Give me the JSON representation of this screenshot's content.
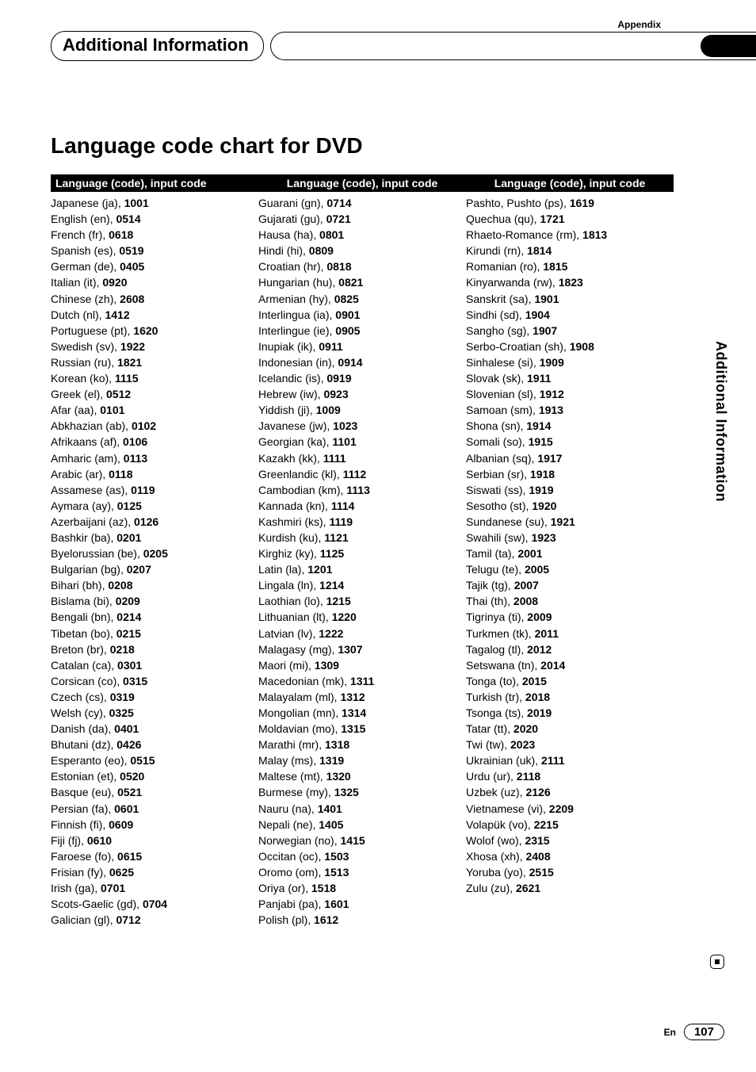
{
  "header": {
    "appendix": "Appendix",
    "section_title": "Additional Information"
  },
  "title": "Language code chart for DVD",
  "column_header": "Language (code), input code",
  "side_tab": "Additional Information",
  "footer": {
    "lang": "En",
    "page": "107"
  },
  "colors": {
    "text": "#000000",
    "bg": "#ffffff",
    "header_bg": "#000000",
    "header_fg": "#ffffff"
  },
  "columns": [
    [
      {
        "n": "Japanese (ja)",
        "c": "1001"
      },
      {
        "n": "English (en)",
        "c": "0514"
      },
      {
        "n": "French (fr)",
        "c": "0618"
      },
      {
        "n": "Spanish (es)",
        "c": "0519"
      },
      {
        "n": "German (de)",
        "c": "0405"
      },
      {
        "n": "Italian (it)",
        "c": "0920"
      },
      {
        "n": "Chinese (zh)",
        "c": "2608"
      },
      {
        "n": "Dutch (nl)",
        "c": "1412"
      },
      {
        "n": "Portuguese (pt)",
        "c": "1620"
      },
      {
        "n": "Swedish (sv)",
        "c": "1922"
      },
      {
        "n": "Russian (ru)",
        "c": "1821"
      },
      {
        "n": "Korean (ko)",
        "c": "1115"
      },
      {
        "n": "Greek (el)",
        "c": "0512"
      },
      {
        "n": "Afar (aa)",
        "c": "0101"
      },
      {
        "n": "Abkhazian (ab)",
        "c": "0102"
      },
      {
        "n": "Afrikaans (af)",
        "c": "0106"
      },
      {
        "n": "Amharic (am)",
        "c": "0113"
      },
      {
        "n": "Arabic (ar)",
        "c": "0118"
      },
      {
        "n": "Assamese (as)",
        "c": "0119"
      },
      {
        "n": "Aymara (ay)",
        "c": "0125"
      },
      {
        "n": "Azerbaijani (az)",
        "c": "0126"
      },
      {
        "n": "Bashkir (ba)",
        "c": "0201"
      },
      {
        "n": "Byelorussian (be)",
        "c": "0205"
      },
      {
        "n": "Bulgarian (bg)",
        "c": "0207"
      },
      {
        "n": "Bihari (bh)",
        "c": "0208"
      },
      {
        "n": "Bislama (bi)",
        "c": "0209"
      },
      {
        "n": "Bengali (bn)",
        "c": "0214"
      },
      {
        "n": "Tibetan (bo)",
        "c": "0215"
      },
      {
        "n": "Breton (br)",
        "c": "0218"
      },
      {
        "n": "Catalan (ca)",
        "c": "0301"
      },
      {
        "n": "Corsican (co)",
        "c": "0315"
      },
      {
        "n": "Czech (cs)",
        "c": "0319"
      },
      {
        "n": "Welsh (cy)",
        "c": "0325"
      },
      {
        "n": "Danish (da)",
        "c": "0401"
      },
      {
        "n": "Bhutani (dz)",
        "c": "0426"
      },
      {
        "n": "Esperanto (eo)",
        "c": "0515"
      },
      {
        "n": "Estonian (et)",
        "c": "0520"
      },
      {
        "n": "Basque (eu)",
        "c": "0521"
      },
      {
        "n": "Persian (fa)",
        "c": "0601"
      },
      {
        "n": "Finnish (fi)",
        "c": "0609"
      },
      {
        "n": "Fiji (fj)",
        "c": "0610"
      },
      {
        "n": "Faroese (fo)",
        "c": "0615"
      },
      {
        "n": "Frisian (fy)",
        "c": "0625"
      },
      {
        "n": "Irish (ga)",
        "c": "0701"
      },
      {
        "n": "Scots-Gaelic (gd)",
        "c": "0704"
      },
      {
        "n": "Galician (gl)",
        "c": "0712"
      }
    ],
    [
      {
        "n": "Guarani (gn)",
        "c": "0714"
      },
      {
        "n": "Gujarati (gu)",
        "c": "0721"
      },
      {
        "n": "Hausa (ha)",
        "c": "0801"
      },
      {
        "n": "Hindi (hi)",
        "c": "0809"
      },
      {
        "n": "Croatian (hr)",
        "c": "0818"
      },
      {
        "n": "Hungarian (hu)",
        "c": "0821"
      },
      {
        "n": "Armenian (hy)",
        "c": "0825"
      },
      {
        "n": "Interlingua (ia)",
        "c": "0901"
      },
      {
        "n": "Interlingue (ie)",
        "c": "0905"
      },
      {
        "n": "Inupiak (ik)",
        "c": "0911"
      },
      {
        "n": "Indonesian (in)",
        "c": "0914"
      },
      {
        "n": "Icelandic (is)",
        "c": "0919"
      },
      {
        "n": "Hebrew (iw)",
        "c": "0923"
      },
      {
        "n": "Yiddish (ji)",
        "c": "1009"
      },
      {
        "n": "Javanese (jw)",
        "c": "1023"
      },
      {
        "n": "Georgian (ka)",
        "c": "1101"
      },
      {
        "n": "Kazakh (kk)",
        "c": "1111"
      },
      {
        "n": "Greenlandic (kl)",
        "c": "1112"
      },
      {
        "n": "Cambodian (km)",
        "c": "1113"
      },
      {
        "n": "Kannada (kn)",
        "c": "1114"
      },
      {
        "n": "Kashmiri (ks)",
        "c": "1119"
      },
      {
        "n": "Kurdish (ku)",
        "c": "1121"
      },
      {
        "n": "Kirghiz (ky)",
        "c": "1125"
      },
      {
        "n": "Latin (la)",
        "c": "1201"
      },
      {
        "n": "Lingala (ln)",
        "c": "1214"
      },
      {
        "n": "Laothian (lo)",
        "c": "1215"
      },
      {
        "n": "Lithuanian (lt)",
        "c": "1220"
      },
      {
        "n": "Latvian (lv)",
        "c": "1222"
      },
      {
        "n": "Malagasy (mg)",
        "c": "1307"
      },
      {
        "n": "Maori (mi)",
        "c": "1309"
      },
      {
        "n": "Macedonian (mk)",
        "c": "1311"
      },
      {
        "n": "Malayalam (ml)",
        "c": "1312"
      },
      {
        "n": "Mongolian (mn)",
        "c": "1314"
      },
      {
        "n": "Moldavian (mo)",
        "c": "1315"
      },
      {
        "n": "Marathi (mr)",
        "c": "1318"
      },
      {
        "n": "Malay (ms)",
        "c": "1319"
      },
      {
        "n": "Maltese (mt)",
        "c": "1320"
      },
      {
        "n": "Burmese (my)",
        "c": "1325"
      },
      {
        "n": "Nauru (na)",
        "c": "1401"
      },
      {
        "n": "Nepali (ne)",
        "c": "1405"
      },
      {
        "n": "Norwegian (no)",
        "c": "1415"
      },
      {
        "n": "Occitan (oc)",
        "c": "1503"
      },
      {
        "n": "Oromo (om)",
        "c": "1513"
      },
      {
        "n": "Oriya (or)",
        "c": "1518"
      },
      {
        "n": "Panjabi (pa)",
        "c": "1601"
      },
      {
        "n": "Polish (pl)",
        "c": "1612"
      }
    ],
    [
      {
        "n": "Pashto, Pushto (ps)",
        "c": "1619"
      },
      {
        "n": "Quechua (qu)",
        "c": "1721"
      },
      {
        "n": "Rhaeto-Romance (rm)",
        "c": "1813"
      },
      {
        "n": "Kirundi (rn)",
        "c": "1814"
      },
      {
        "n": "Romanian (ro)",
        "c": "1815"
      },
      {
        "n": "Kinyarwanda (rw)",
        "c": "1823"
      },
      {
        "n": "Sanskrit (sa)",
        "c": "1901"
      },
      {
        "n": "Sindhi (sd)",
        "c": "1904"
      },
      {
        "n": "Sangho (sg)",
        "c": "1907"
      },
      {
        "n": "Serbo-Croatian (sh)",
        "c": "1908"
      },
      {
        "n": "Sinhalese (si)",
        "c": "1909"
      },
      {
        "n": "Slovak (sk)",
        "c": "1911"
      },
      {
        "n": "Slovenian (sl)",
        "c": "1912"
      },
      {
        "n": "Samoan (sm)",
        "c": "1913"
      },
      {
        "n": "Shona (sn)",
        "c": "1914"
      },
      {
        "n": "Somali (so)",
        "c": "1915"
      },
      {
        "n": "Albanian (sq)",
        "c": "1917"
      },
      {
        "n": "Serbian (sr)",
        "c": "1918"
      },
      {
        "n": "Siswati (ss)",
        "c": "1919"
      },
      {
        "n": "Sesotho (st)",
        "c": "1920"
      },
      {
        "n": "Sundanese (su)",
        "c": "1921"
      },
      {
        "n": "Swahili (sw)",
        "c": "1923"
      },
      {
        "n": "Tamil (ta)",
        "c": "2001"
      },
      {
        "n": "Telugu (te)",
        "c": "2005"
      },
      {
        "n": "Tajik (tg)",
        "c": "2007"
      },
      {
        "n": "Thai (th)",
        "c": "2008"
      },
      {
        "n": "Tigrinya (ti)",
        "c": "2009"
      },
      {
        "n": "Turkmen (tk)",
        "c": "2011"
      },
      {
        "n": "Tagalog (tl)",
        "c": "2012"
      },
      {
        "n": "Setswana (tn)",
        "c": "2014"
      },
      {
        "n": "Tonga (to)",
        "c": "2015"
      },
      {
        "n": "Turkish (tr)",
        "c": "2018"
      },
      {
        "n": "Tsonga (ts)",
        "c": "2019"
      },
      {
        "n": "Tatar (tt)",
        "c": "2020"
      },
      {
        "n": "Twi (tw)",
        "c": "2023"
      },
      {
        "n": "Ukrainian (uk)",
        "c": "2111"
      },
      {
        "n": "Urdu (ur)",
        "c": "2118"
      },
      {
        "n": "Uzbek (uz)",
        "c": "2126"
      },
      {
        "n": "Vietnamese (vi)",
        "c": "2209"
      },
      {
        "n": "Volapük (vo)",
        "c": "2215"
      },
      {
        "n": "Wolof (wo)",
        "c": "2315"
      },
      {
        "n": "Xhosa (xh)",
        "c": "2408"
      },
      {
        "n": "Yoruba (yo)",
        "c": "2515"
      },
      {
        "n": "Zulu (zu)",
        "c": "2621"
      }
    ]
  ]
}
